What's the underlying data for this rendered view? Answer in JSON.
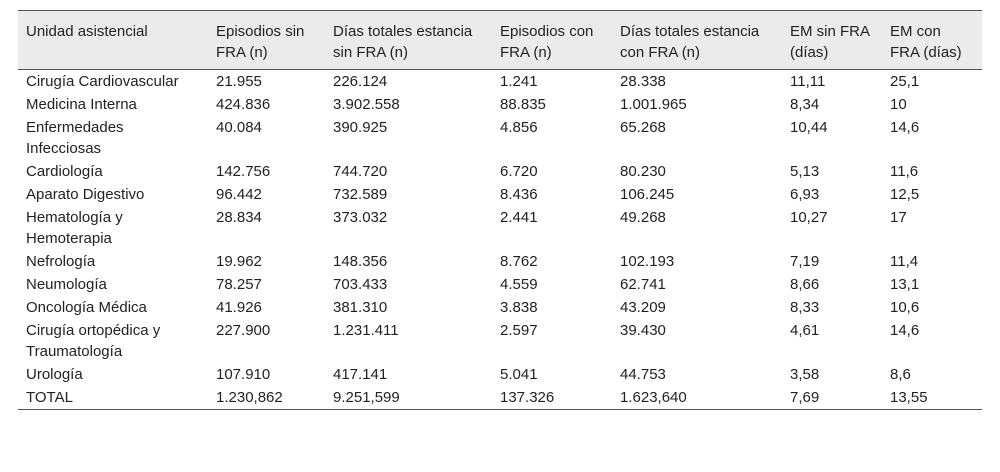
{
  "table": {
    "header": [
      "Unidad asistencial",
      "Episodios sin FRA (n)",
      "Días totales estancia sin FRA (n)",
      "Episodios con FRA (n)",
      "Días totales estancia con FRA (n)",
      "EM sin FRA (días)",
      "EM con FRA (días)"
    ],
    "rows": [
      [
        "Cirugía Cardiovascular",
        "21.955",
        "226.124",
        "1.241",
        "28.338",
        "11,11",
        "25,1"
      ],
      [
        "Medicina Interna",
        "424.836",
        "3.902.558",
        "88.835",
        "1.001.965",
        "8,34",
        "10"
      ],
      [
        "Enfermedades Infecciosas",
        "40.084",
        "390.925",
        "4.856",
        "65.268",
        "10,44",
        "14,6"
      ],
      [
        "Cardiología",
        "142.756",
        "744.720",
        "6.720",
        "80.230",
        "5,13",
        "11,6"
      ],
      [
        "Aparato Digestivo",
        "96.442",
        "732.589",
        "8.436",
        "106.245",
        "6,93",
        "12,5"
      ],
      [
        "Hematología y Hemoterapia",
        "28.834",
        "373.032",
        "2.441",
        "49.268",
        "10,27",
        "17"
      ],
      [
        "Nefrología",
        "19.962",
        "148.356",
        "8.762",
        "102.193",
        "7,19",
        "11,4"
      ],
      [
        "Neumología",
        "78.257",
        "703.433",
        "4.559",
        "62.741",
        "8,66",
        "13,1"
      ],
      [
        "Oncología Médica",
        "41.926",
        "381.310",
        "3.838",
        "43.209",
        "8,33",
        "10,6"
      ],
      [
        "Cirugía ortopédica y Traumatología",
        "227.900",
        "1.231.411",
        "2.597",
        "39.430",
        "4,61",
        "14,6"
      ],
      [
        "Urología",
        "107.910",
        "417.141",
        "5.041",
        "44.753",
        "3,58",
        "8,6"
      ],
      [
        "TOTAL",
        "1.230,862",
        "9.251,599",
        "137.326",
        "1.623,640",
        "7,69",
        "13,55"
      ]
    ]
  }
}
